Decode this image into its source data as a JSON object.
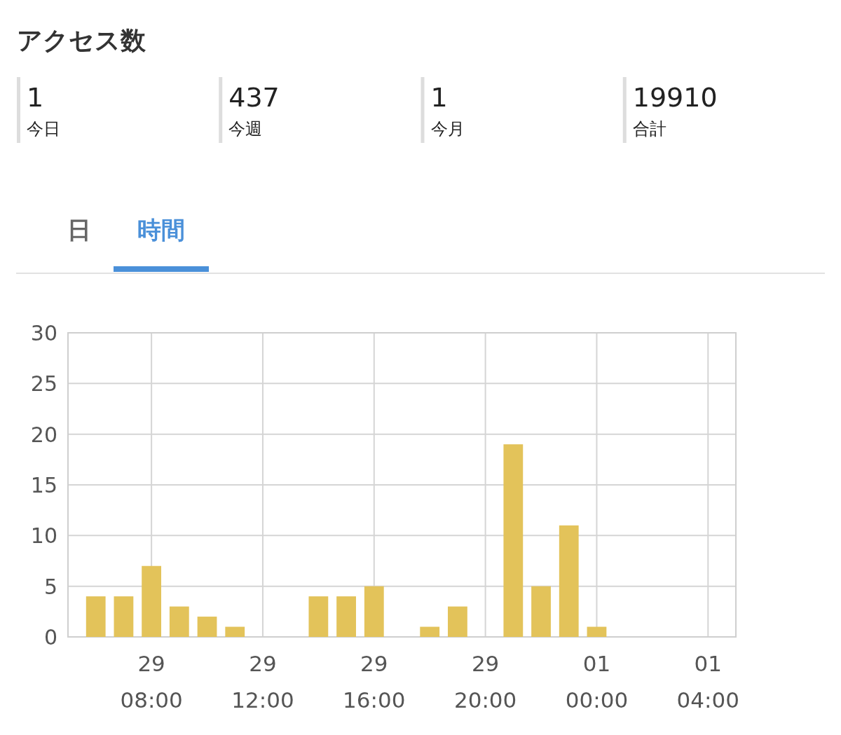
{
  "chart_data": [
    {
      "type": "other",
      "title": "アクセス数",
      "categories": [
        "今日",
        "今週",
        "今月",
        "合計"
      ],
      "values": [
        1,
        437,
        1,
        19910
      ],
      "data_labels": true
    },
    {
      "type": "bar",
      "annotations": [
        "日",
        "時間"
      ],
      "categories": [
        null,
        null,
        null,
        "29\n08:00",
        null,
        null,
        null,
        "29\n12:00",
        null,
        null,
        null,
        "29\n16:00",
        null,
        null,
        null,
        "29\n20:00",
        null,
        null,
        null,
        "01\n00:00",
        null,
        null,
        null,
        "01\n04:00"
      ],
      "values": [
        0,
        4,
        4,
        7,
        3,
        2,
        1,
        0,
        0,
        4,
        4,
        5,
        0,
        1,
        3,
        0,
        19,
        5,
        11,
        1,
        null,
        null,
        null,
        null
      ],
      "color": "#e3c35a",
      "ylim": [
        0,
        30
      ],
      "yticks": [
        0,
        5,
        10,
        15,
        20,
        25,
        30
      ],
      "grid": true
    }
  ]
}
